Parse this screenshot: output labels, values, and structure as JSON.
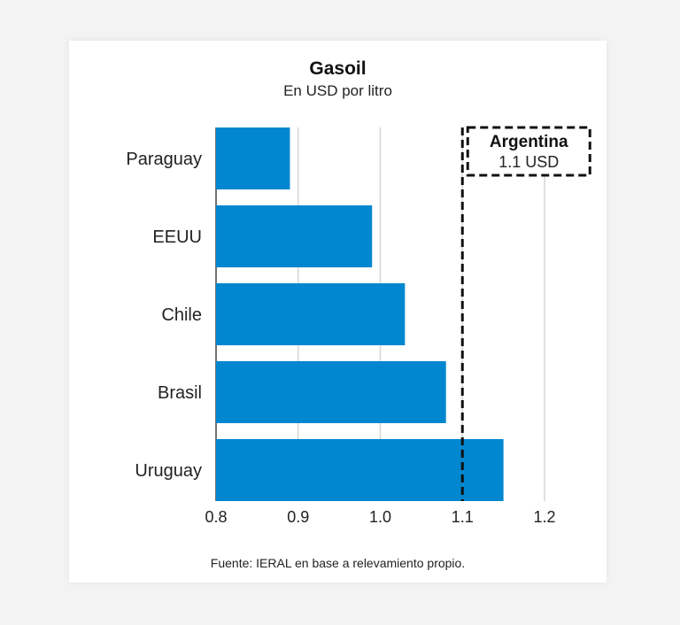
{
  "chart_data": {
    "type": "bar",
    "orientation": "horizontal",
    "title": "Gasoil",
    "subtitle": "En USD por litro",
    "categories": [
      "Paraguay",
      "EEUU",
      "Chile",
      "Brasil",
      "Uruguay"
    ],
    "values": [
      0.89,
      0.99,
      1.03,
      1.08,
      1.15
    ],
    "xlim": [
      0.8,
      1.2
    ],
    "xticks": [
      0.8,
      0.9,
      1.0,
      1.1,
      1.2
    ],
    "xtick_labels": [
      "0.8",
      "0.9",
      "1.0",
      "1.1",
      "1.2"
    ],
    "xlabel": "",
    "ylabel": "",
    "grid": "vertical",
    "bar_color": "#0087cf",
    "reference_line": {
      "value": 1.1,
      "label": "Argentina",
      "value_label": "1.1 USD",
      "style": "dashed"
    },
    "source": "Fuente: IERAL en base a relevamiento propio."
  }
}
